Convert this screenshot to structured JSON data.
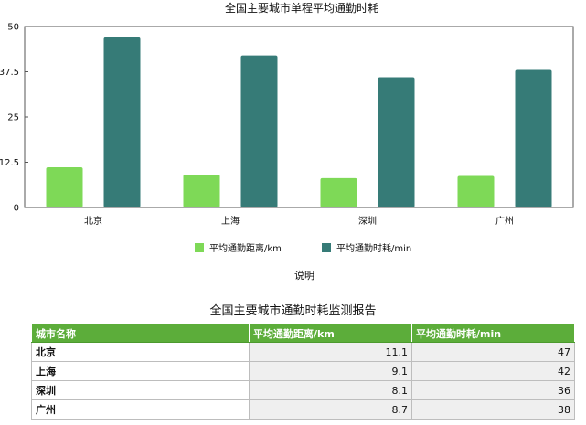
{
  "chart_data": {
    "type": "bar",
    "title": "全国主要城市单程平均通勤时耗",
    "categories": [
      "北京",
      "上海",
      "深圳",
      "广州"
    ],
    "series": [
      {
        "name": "平均通勤距离/km",
        "values": [
          11.1,
          9.1,
          8.1,
          8.7
        ],
        "color": "#7ed957"
      },
      {
        "name": "平均通勤时耗/min",
        "values": [
          47,
          42,
          36,
          38
        ],
        "color": "#367b77"
      }
    ],
    "ylim": [
      0,
      50
    ],
    "yticks": [
      "0",
      "12.5",
      "25",
      "37.5",
      "50"
    ],
    "grid": false,
    "legend_position": "bottom",
    "caption": "说明"
  },
  "report": {
    "title": "全国主要城市通勤时耗监测报告",
    "headers": [
      "城市名称",
      "平均通勤距离/km",
      "平均通勤时耗/min"
    ],
    "rows": [
      [
        "北京",
        "11.1",
        "47"
      ],
      [
        "上海",
        "9.1",
        "42"
      ],
      [
        "深圳",
        "8.1",
        "36"
      ],
      [
        "广州",
        "8.7",
        "38"
      ]
    ]
  }
}
